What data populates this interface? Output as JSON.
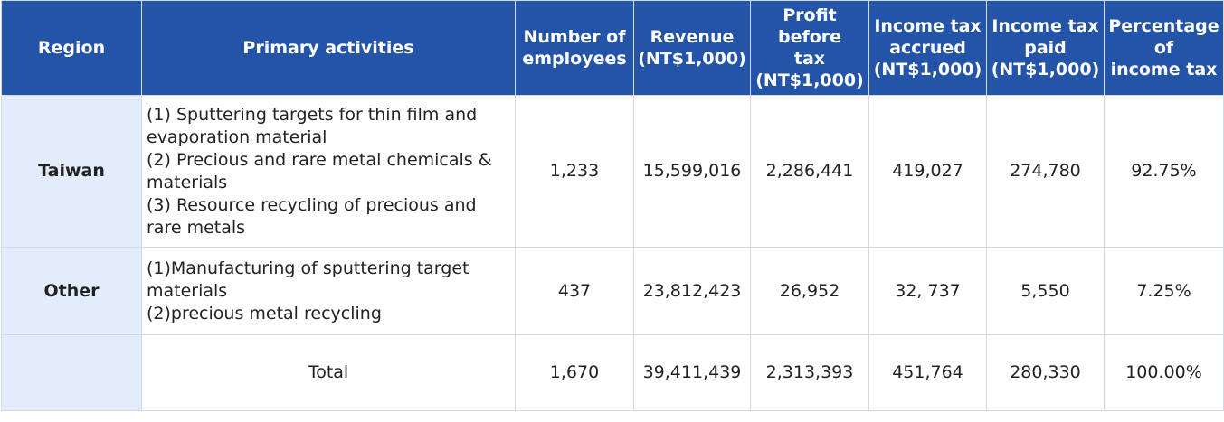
{
  "headers": {
    "region": "Region",
    "activities": "Primary activities",
    "employees": [
      "Number of",
      "employees"
    ],
    "revenue": [
      "Revenue",
      "(NT$1,000)"
    ],
    "profit": [
      "Profit before",
      "tax",
      "(NT$1,000)"
    ],
    "tax_accrued": [
      "Income tax",
      "accrued",
      "(NT$1,000)"
    ],
    "tax_paid": [
      "Income tax",
      "paid",
      "(NT$1,000)"
    ],
    "percentage": [
      "Percentage",
      "of",
      "income tax"
    ]
  },
  "rows": [
    {
      "region": "Taiwan",
      "activities": [
        "(1) Sputtering targets for thin film and evaporation material",
        "(2) Precious and rare metal chemicals & materials",
        "(3) Resource recycling of precious and rare metals"
      ],
      "employees": "1,233",
      "revenue": "15,599,016",
      "profit": "2,286,441",
      "tax_accrued": "419,027",
      "tax_paid": "274,780",
      "percentage": "92.75%"
    },
    {
      "region": "Other",
      "activities": [
        "(1)Manufacturing of sputtering target materials",
        "(2)precious metal recycling"
      ],
      "employees": "437",
      "revenue": "23,812,423",
      "profit": "26,952",
      "tax_accrued": "32, 737",
      "tax_paid": "5,550",
      "percentage": "7.25%"
    }
  ],
  "total": {
    "region": "",
    "label": "Total",
    "employees": "1,670",
    "revenue": "39,411,439",
    "profit": "2,313,393",
    "tax_accrued": "451,764",
    "tax_paid": "280,330",
    "percentage": "100.00%"
  }
}
